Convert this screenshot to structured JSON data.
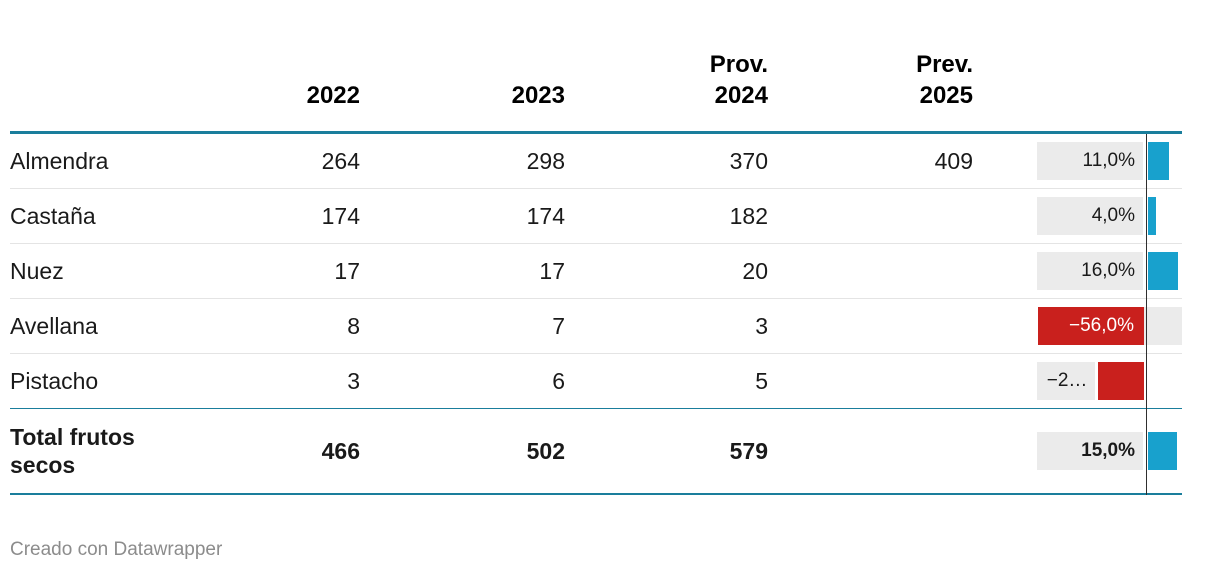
{
  "header": {
    "col_2022": "2022",
    "col_2023": "2023",
    "col_2024": "Prov.\n2024",
    "col_2025": "Prev.\n2025"
  },
  "rows": [
    {
      "label": "Almendra",
      "y2022": "264",
      "y2023": "298",
      "y2024": "370",
      "y2025": "409",
      "pct_label": "11,0%",
      "pct_value": 11,
      "pct_display": "box-left"
    },
    {
      "label": "Castaña",
      "y2022": "174",
      "y2023": "174",
      "y2024": "182",
      "y2025": "",
      "pct_label": "4,0%",
      "pct_value": 4,
      "pct_display": "box-left"
    },
    {
      "label": "Nuez",
      "y2022": "17",
      "y2023": "17",
      "y2024": "20",
      "y2025": "",
      "pct_label": "16,0%",
      "pct_value": 16,
      "pct_display": "box-left"
    },
    {
      "label": "Avellana",
      "y2022": "8",
      "y2023": "7",
      "y2024": "3",
      "y2025": "",
      "pct_label": "−56,0%",
      "pct_value": -56,
      "pct_display": "inside-bar-with-tail"
    },
    {
      "label": "Pistacho",
      "y2022": "3",
      "y2023": "6",
      "y2024": "5",
      "y2025": "",
      "pct_label": "−2…",
      "pct_value": -24,
      "pct_display": "box-before-bar"
    }
  ],
  "total_row": {
    "label": "Total frutos secos",
    "y2022": "466",
    "y2023": "502",
    "y2024": "579",
    "y2025": "",
    "pct_label": "15,0%",
    "pct_value": 15,
    "pct_display": "box-left"
  },
  "footer": {
    "credit": "Creado con Datawrapper"
  },
  "colors": {
    "positive_bar": "#18a1cd",
    "negative_bar": "#c9201d",
    "rule_teal": "#1a7e9c",
    "label_box_bg": "#ebebeb",
    "row_divider": "#e4e4e4",
    "axis_line": "#2f2f2f",
    "footer_text": "#8c8c8c"
  },
  "chart_data": {
    "type": "table",
    "title": "",
    "columns": [
      "",
      "2022",
      "2023",
      "Prov. 2024",
      "Prev. 2025",
      "change_pct_bar"
    ],
    "rows": [
      [
        "Almendra",
        264,
        298,
        370,
        409,
        11.0
      ],
      [
        "Castaña",
        174,
        174,
        182,
        null,
        4.0
      ],
      [
        "Nuez",
        17,
        17,
        20,
        null,
        16.0
      ],
      [
        "Avellana",
        8,
        7,
        3,
        null,
        -56.0
      ],
      [
        "Pistacho",
        3,
        6,
        5,
        null,
        -24.0
      ],
      [
        "Total frutos secos",
        466,
        502,
        579,
        null,
        15.0
      ]
    ],
    "bar_column": {
      "positive_color": "#18a1cd",
      "negative_color": "#c9201d",
      "zero_axis": true,
      "labels": [
        "11,0%",
        "4,0%",
        "16,0%",
        "−56,0%",
        "−2…",
        "15,0%"
      ],
      "note": "Pistacho label truncated on screen; -24 estimated from bar length"
    }
  }
}
